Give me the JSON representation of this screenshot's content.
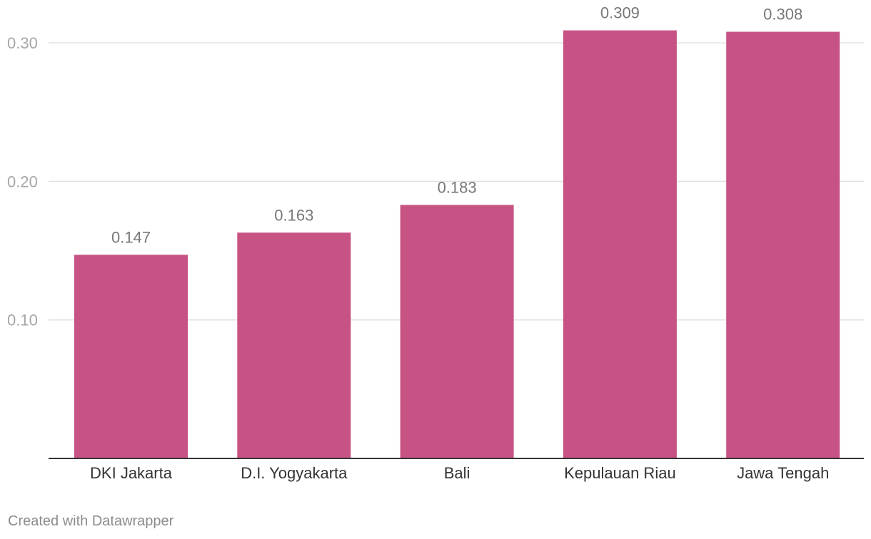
{
  "chart_data": {
    "type": "bar",
    "categories": [
      "DKI Jakarta",
      "D.I. Yogyakarta",
      "Bali",
      "Kepulauan Riau",
      "Jawa Tengah"
    ],
    "values": [
      0.147,
      0.163,
      0.183,
      0.309,
      0.308
    ],
    "value_labels": [
      "0.147",
      "0.163",
      "0.183",
      "0.309",
      "0.308"
    ],
    "y_ticks": [
      0.1,
      0.2,
      0.3
    ],
    "y_tick_labels": [
      "0.10",
      "0.20",
      "0.30"
    ],
    "ylim": [
      0,
      0.3
    ],
    "grid": true,
    "bar_color": "#c65383",
    "gridline_color": "#e0e0e0",
    "baseline_color": "#333333"
  },
  "footer": {
    "credit": "Created with Datawrapper"
  }
}
